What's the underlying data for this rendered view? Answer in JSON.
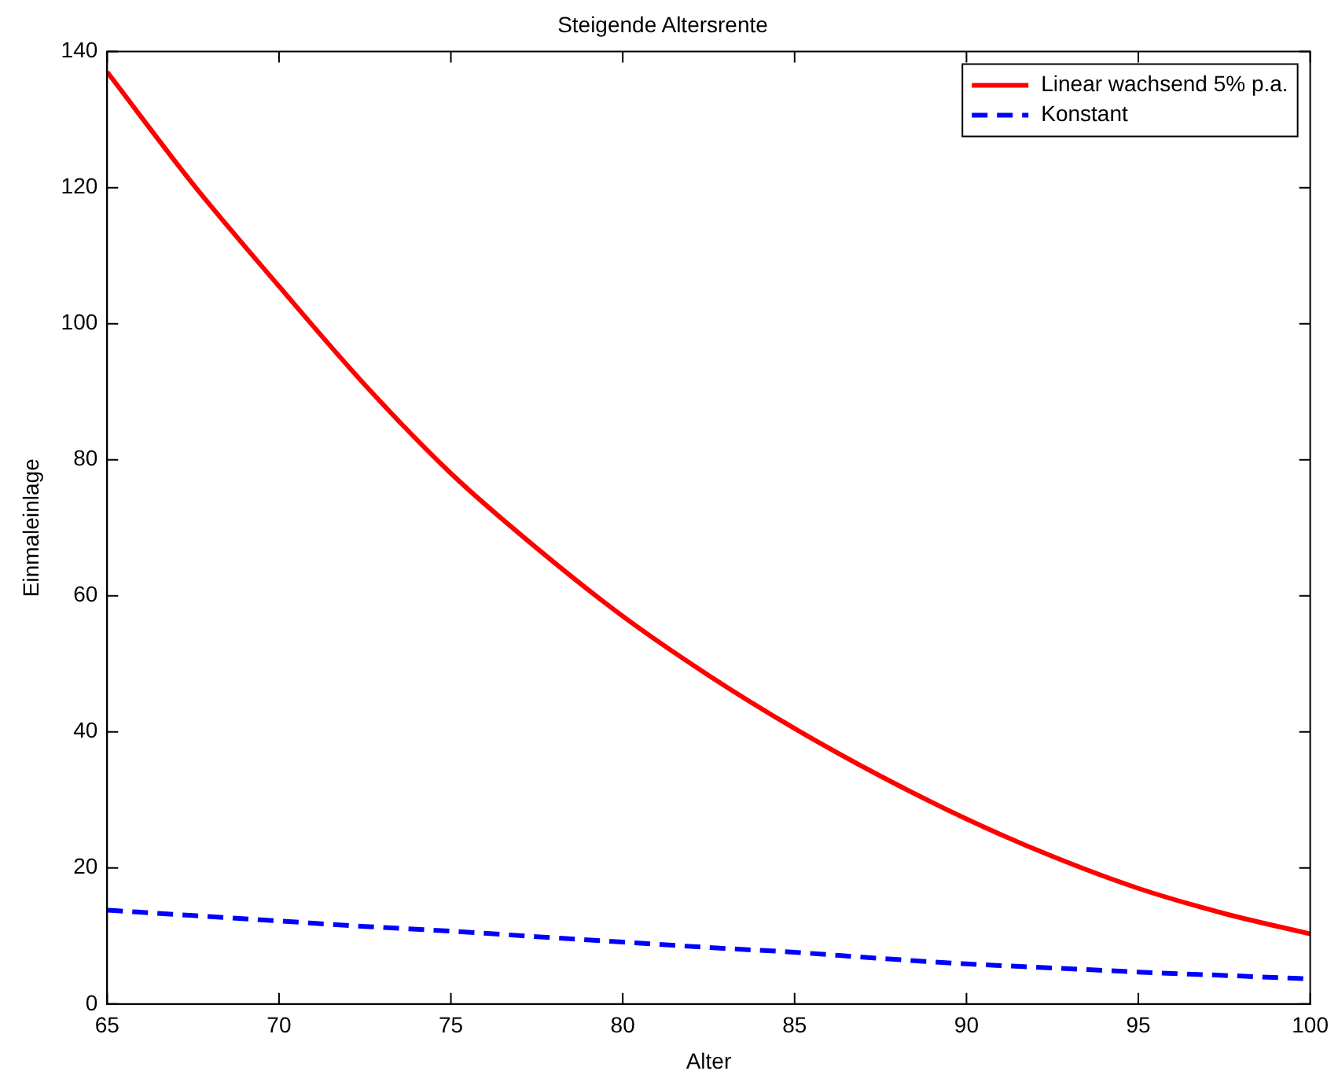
{
  "chart_data": {
    "type": "line",
    "title": "Steigende Altersrente",
    "xlabel": "Alter",
    "ylabel": "Einmaleinlage",
    "x": [
      65,
      67.5,
      70,
      72.5,
      75,
      77.5,
      80,
      82.5,
      85,
      87.5,
      90,
      92.5,
      95,
      97.5,
      100
    ],
    "series": [
      {
        "name": "Linear wachsend 5% p.a.",
        "color": "#ff0000",
        "line_style": "solid",
        "values": [
          137,
          120.5,
          105.5,
          91,
          78,
          67,
          57,
          48.3,
          40.5,
          33.5,
          27.2,
          21.7,
          17,
          13.3,
          10.3
        ]
      },
      {
        "name": "Konstant",
        "color": "#0000ff",
        "line_style": "dashed",
        "values": [
          13.8,
          13,
          12.2,
          11.4,
          10.7,
          9.9,
          9.1,
          8.3,
          7.6,
          6.7,
          5.9,
          5.3,
          4.7,
          4.2,
          3.7
        ]
      }
    ],
    "xlim": [
      65,
      100
    ],
    "xticks": [
      65,
      70,
      75,
      80,
      85,
      90,
      95,
      100
    ],
    "ylim": [
      0,
      140
    ],
    "yticks": [
      0,
      20,
      40,
      60,
      80,
      100,
      120,
      140
    ],
    "grid": false,
    "legend": "top right",
    "marker": "none"
  }
}
